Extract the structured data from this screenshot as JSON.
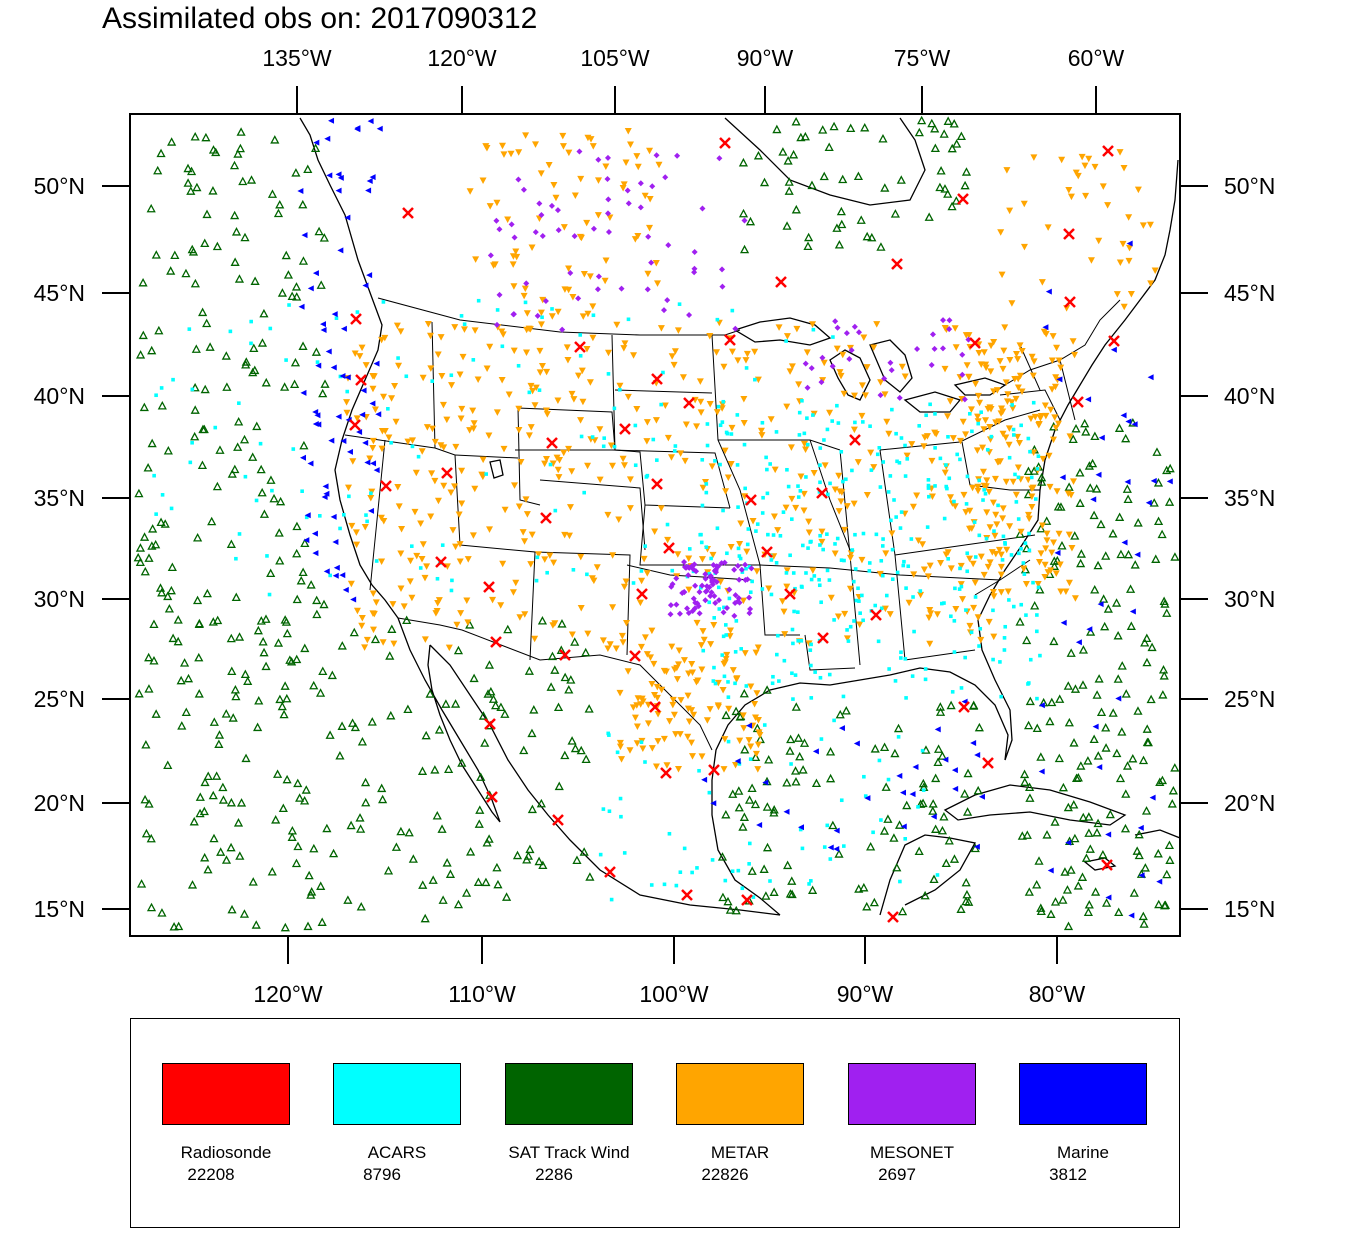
{
  "title": "Assimilated obs on: 2017090312",
  "map": {
    "top_lon_labels": [
      "135°W",
      "120°W",
      "105°W",
      "90°W",
      "75°W",
      "60°W"
    ],
    "bottom_lon_labels": [
      "120°W",
      "110°W",
      "100°W",
      "90°W",
      "80°W"
    ],
    "lat_labels": [
      "50°N",
      "45°N",
      "40°N",
      "35°N",
      "30°N",
      "25°N",
      "20°N",
      "15°N"
    ]
  },
  "legend": [
    {
      "name": "Radiosonde",
      "count": "22208",
      "color": "#ff0000"
    },
    {
      "name": "ACARS",
      "count": "8796",
      "color": "#00ffff"
    },
    {
      "name": "SAT Track Wind",
      "count": "2286",
      "color": "#006400"
    },
    {
      "name": "METAR",
      "count": "22826",
      "color": "#ffa500"
    },
    {
      "name": "MESONET",
      "count": "2697",
      "color": "#a020f0"
    },
    {
      "name": "Marine",
      "count": "3812",
      "color": "#0000ff"
    }
  ],
  "colors": {
    "radiosonde": "#ff0000",
    "acars": "#00ffff",
    "sat": "#006400",
    "metar": "#ffa500",
    "mesonet": "#a020f0",
    "marine": "#0000ff"
  }
}
